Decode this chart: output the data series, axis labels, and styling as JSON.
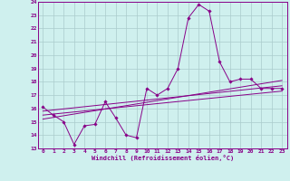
{
  "xlabel": "Windchill (Refroidissement éolien,°C)",
  "background_color": "#cff0ee",
  "grid_color": "#aacccc",
  "line_color": "#880088",
  "xlim": [
    -0.5,
    23.5
  ],
  "ylim": [
    13,
    24
  ],
  "xticks": [
    0,
    1,
    2,
    3,
    4,
    5,
    6,
    7,
    8,
    9,
    10,
    11,
    12,
    13,
    14,
    15,
    16,
    17,
    18,
    19,
    20,
    21,
    22,
    23
  ],
  "yticks": [
    13,
    14,
    15,
    16,
    17,
    18,
    19,
    20,
    21,
    22,
    23,
    24
  ],
  "series1_x": [
    0,
    1,
    2,
    3,
    4,
    5,
    6,
    7,
    8,
    9,
    10,
    11,
    12,
    13,
    14,
    15,
    16,
    17,
    18,
    19,
    20,
    21,
    22,
    23
  ],
  "series1_y": [
    16.1,
    15.5,
    15.0,
    13.3,
    14.7,
    14.8,
    16.5,
    15.3,
    14.0,
    13.8,
    17.5,
    17.0,
    17.5,
    19.0,
    22.8,
    23.8,
    23.3,
    19.5,
    18.0,
    18.2,
    18.2,
    17.5,
    17.5,
    17.5
  ],
  "series2_x": [
    0,
    23
  ],
  "series2_y": [
    15.8,
    17.7
  ],
  "series3_x": [
    0,
    23
  ],
  "series3_y": [
    15.5,
    17.3
  ],
  "series4_x": [
    0,
    23
  ],
  "series4_y": [
    15.2,
    18.1
  ]
}
